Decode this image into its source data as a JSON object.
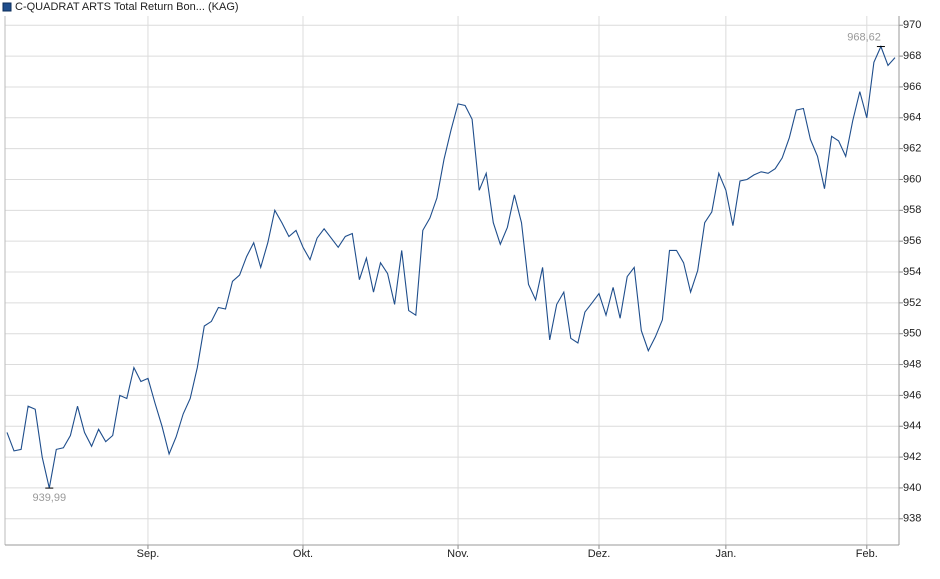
{
  "chart_data": {
    "type": "line",
    "categories": [
      null,
      null,
      null,
      null,
      null,
      null,
      null,
      null,
      null,
      null,
      null,
      null,
      null,
      null,
      null,
      null,
      null,
      null,
      null,
      null,
      "Sep.",
      null,
      null,
      null,
      null,
      null,
      null,
      null,
      null,
      null,
      null,
      null,
      null,
      null,
      null,
      null,
      null,
      null,
      null,
      null,
      null,
      null,
      "Okt.",
      null,
      null,
      null,
      null,
      null,
      null,
      null,
      null,
      null,
      null,
      null,
      null,
      null,
      null,
      null,
      null,
      null,
      null,
      null,
      null,
      null,
      "Nov.",
      null,
      null,
      null,
      null,
      null,
      null,
      null,
      null,
      null,
      null,
      null,
      null,
      null,
      null,
      null,
      null,
      null,
      null,
      null,
      "Dez.",
      null,
      null,
      null,
      null,
      null,
      null,
      null,
      null,
      null,
      null,
      null,
      null,
      null,
      null,
      null,
      null,
      null,
      "Jan.",
      null,
      null,
      null,
      null,
      null,
      null,
      null,
      null,
      null,
      null,
      null,
      null,
      null,
      null,
      null,
      null,
      null,
      null,
      null,
      "Feb.",
      null,
      null,
      null,
      null
    ],
    "series": [
      {
        "name": "C-QUADRAT ARTS Total Return Bon... (KAG)",
        "color": "#1f4e8c",
        "values": [
          943.6,
          942.4,
          942.5,
          945.3,
          945.1,
          942.0,
          939.99,
          942.5,
          942.6,
          943.4,
          945.3,
          943.6,
          942.7,
          943.8,
          943.0,
          943.4,
          946.0,
          945.8,
          947.8,
          946.9,
          947.1,
          945.5,
          944.0,
          942.2,
          943.3,
          944.8,
          945.8,
          947.8,
          950.5,
          950.8,
          951.7,
          951.6,
          953.4,
          953.8,
          955.0,
          955.9,
          954.3,
          955.9,
          958.0,
          957.2,
          956.3,
          956.7,
          955.6,
          954.8,
          956.2,
          956.8,
          956.2,
          955.6,
          956.3,
          956.5,
          953.5,
          954.9,
          952.7,
          954.6,
          953.9,
          951.9,
          955.4,
          951.5,
          951.2,
          956.7,
          957.5,
          958.8,
          961.3,
          963.2,
          964.9,
          964.8,
          963.9,
          959.3,
          960.4,
          957.2,
          955.8,
          956.9,
          959.0,
          957.2,
          953.2,
          952.2,
          954.3,
          949.6,
          951.9,
          952.7,
          949.7,
          949.4,
          951.4,
          952.0,
          952.6,
          951.2,
          953.0,
          951.0,
          953.7,
          954.3,
          950.2,
          948.9,
          949.8,
          950.9,
          955.4,
          955.4,
          954.6,
          952.7,
          954.1,
          957.2,
          957.9,
          960.4,
          959.3,
          957.0,
          959.9,
          960.0,
          960.3,
          960.5,
          960.4,
          960.7,
          961.4,
          962.7,
          964.5,
          964.6,
          962.6,
          961.5,
          959.4,
          962.8,
          962.5,
          961.5,
          963.8,
          965.7,
          964.0,
          967.6,
          968.62,
          967.4,
          967.9
        ],
        "value_labels": [
          null,
          null,
          null,
          null,
          null,
          null,
          "939,99",
          null,
          null,
          null,
          null,
          null,
          null,
          null,
          null,
          null,
          null,
          null,
          null,
          null,
          null,
          null,
          null,
          null,
          null,
          null,
          null,
          null,
          null,
          null,
          null,
          null,
          null,
          null,
          null,
          null,
          null,
          null,
          null,
          null,
          null,
          null,
          null,
          null,
          null,
          null,
          null,
          null,
          null,
          null,
          null,
          null,
          null,
          null,
          null,
          null,
          null,
          null,
          null,
          null,
          null,
          null,
          null,
          null,
          null,
          null,
          null,
          null,
          null,
          null,
          null,
          null,
          null,
          null,
          null,
          null,
          null,
          null,
          null,
          null,
          null,
          null,
          null,
          null,
          null,
          null,
          null,
          null,
          null,
          null,
          null,
          null,
          null,
          null,
          null,
          null,
          null,
          null,
          null,
          null,
          null,
          null,
          null,
          null,
          null,
          null,
          null,
          null,
          null,
          null,
          null,
          null,
          null,
          null,
          null,
          null,
          null,
          null,
          null,
          null,
          null,
          null,
          null,
          null,
          "968,62",
          null,
          null
        ]
      }
    ],
    "ylim": [
      936.3,
      970.6
    ],
    "yticks": [
      938,
      940,
      942,
      944,
      946,
      948,
      950,
      952,
      954,
      956,
      958,
      960,
      962,
      964,
      966,
      968,
      970
    ],
    "grid": true
  }
}
